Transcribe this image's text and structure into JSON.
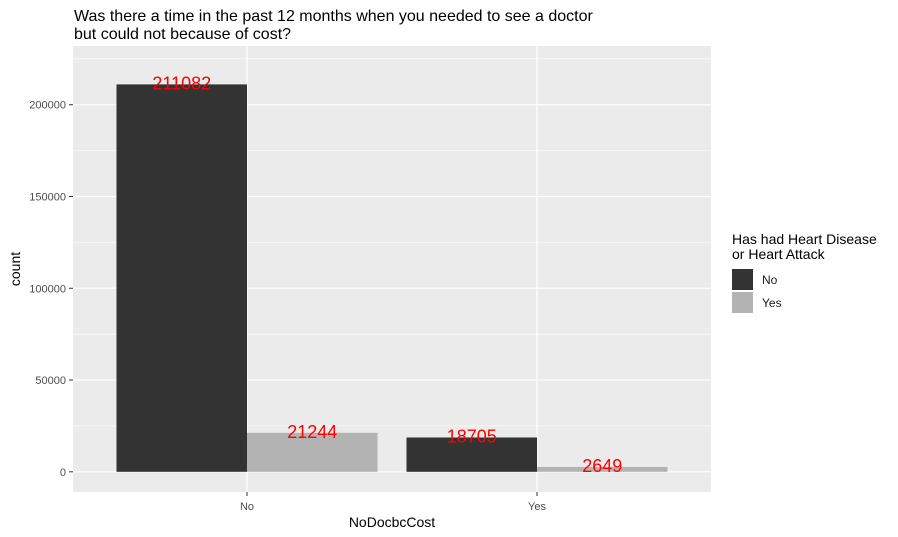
{
  "chart_data": {
    "type": "bar",
    "title_lines": [
      "Was there a time in the past 12 months when you needed to see a doctor",
      "but could not because of cost?"
    ],
    "xlabel": "NoDocbcCost",
    "ylabel": "count",
    "categories": [
      "No",
      "Yes"
    ],
    "series": [
      {
        "name": "No",
        "color": "#333333",
        "values": [
          211082,
          18705
        ]
      },
      {
        "name": "Yes",
        "color": "#b3b3b3",
        "values": [
          21244,
          2649
        ]
      }
    ],
    "ylim": [
      -11000,
      232000
    ],
    "yticks": [
      0,
      50000,
      100000,
      150000,
      200000
    ],
    "data_label_color": "#ff0000",
    "panel_background": "#ebebeb",
    "grid": true,
    "legend": {
      "title_lines": [
        "Has had Heart Disease",
        "or Heart Attack"
      ],
      "position": "right"
    }
  }
}
